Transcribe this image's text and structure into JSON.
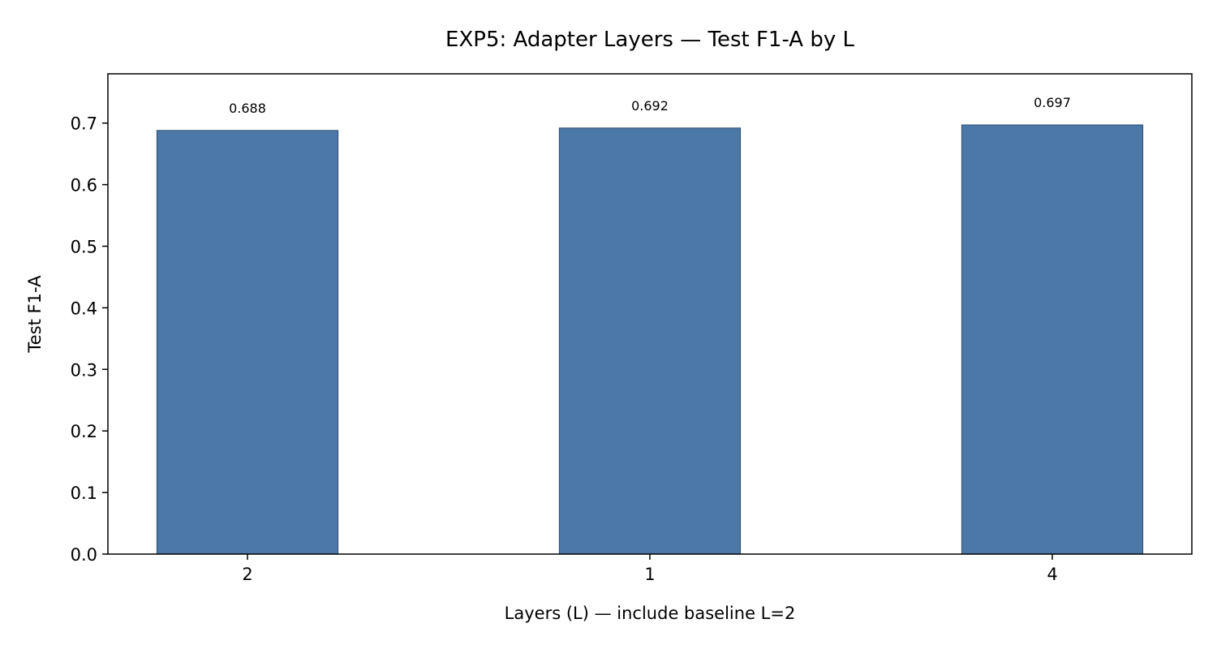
{
  "chart_data": {
    "type": "bar",
    "title": "EXP5: Adapter Layers — Test F1-A by L",
    "xlabel": "Layers (L) — include baseline L=2",
    "ylabel": "Test F1-A",
    "categories": [
      "2",
      "1",
      "4"
    ],
    "values": [
      0.688,
      0.692,
      0.697
    ],
    "data_labels": [
      "0.688",
      "0.692",
      "0.697"
    ],
    "ylim": [
      0,
      0.78
    ],
    "yticks": [
      "0.0",
      "0.1",
      "0.2",
      "0.3",
      "0.4",
      "0.5",
      "0.6",
      "0.7"
    ],
    "grid": false,
    "legend": "none",
    "bar_color": "#4c78a8",
    "bar_edge_color": "#2f4b6e"
  }
}
